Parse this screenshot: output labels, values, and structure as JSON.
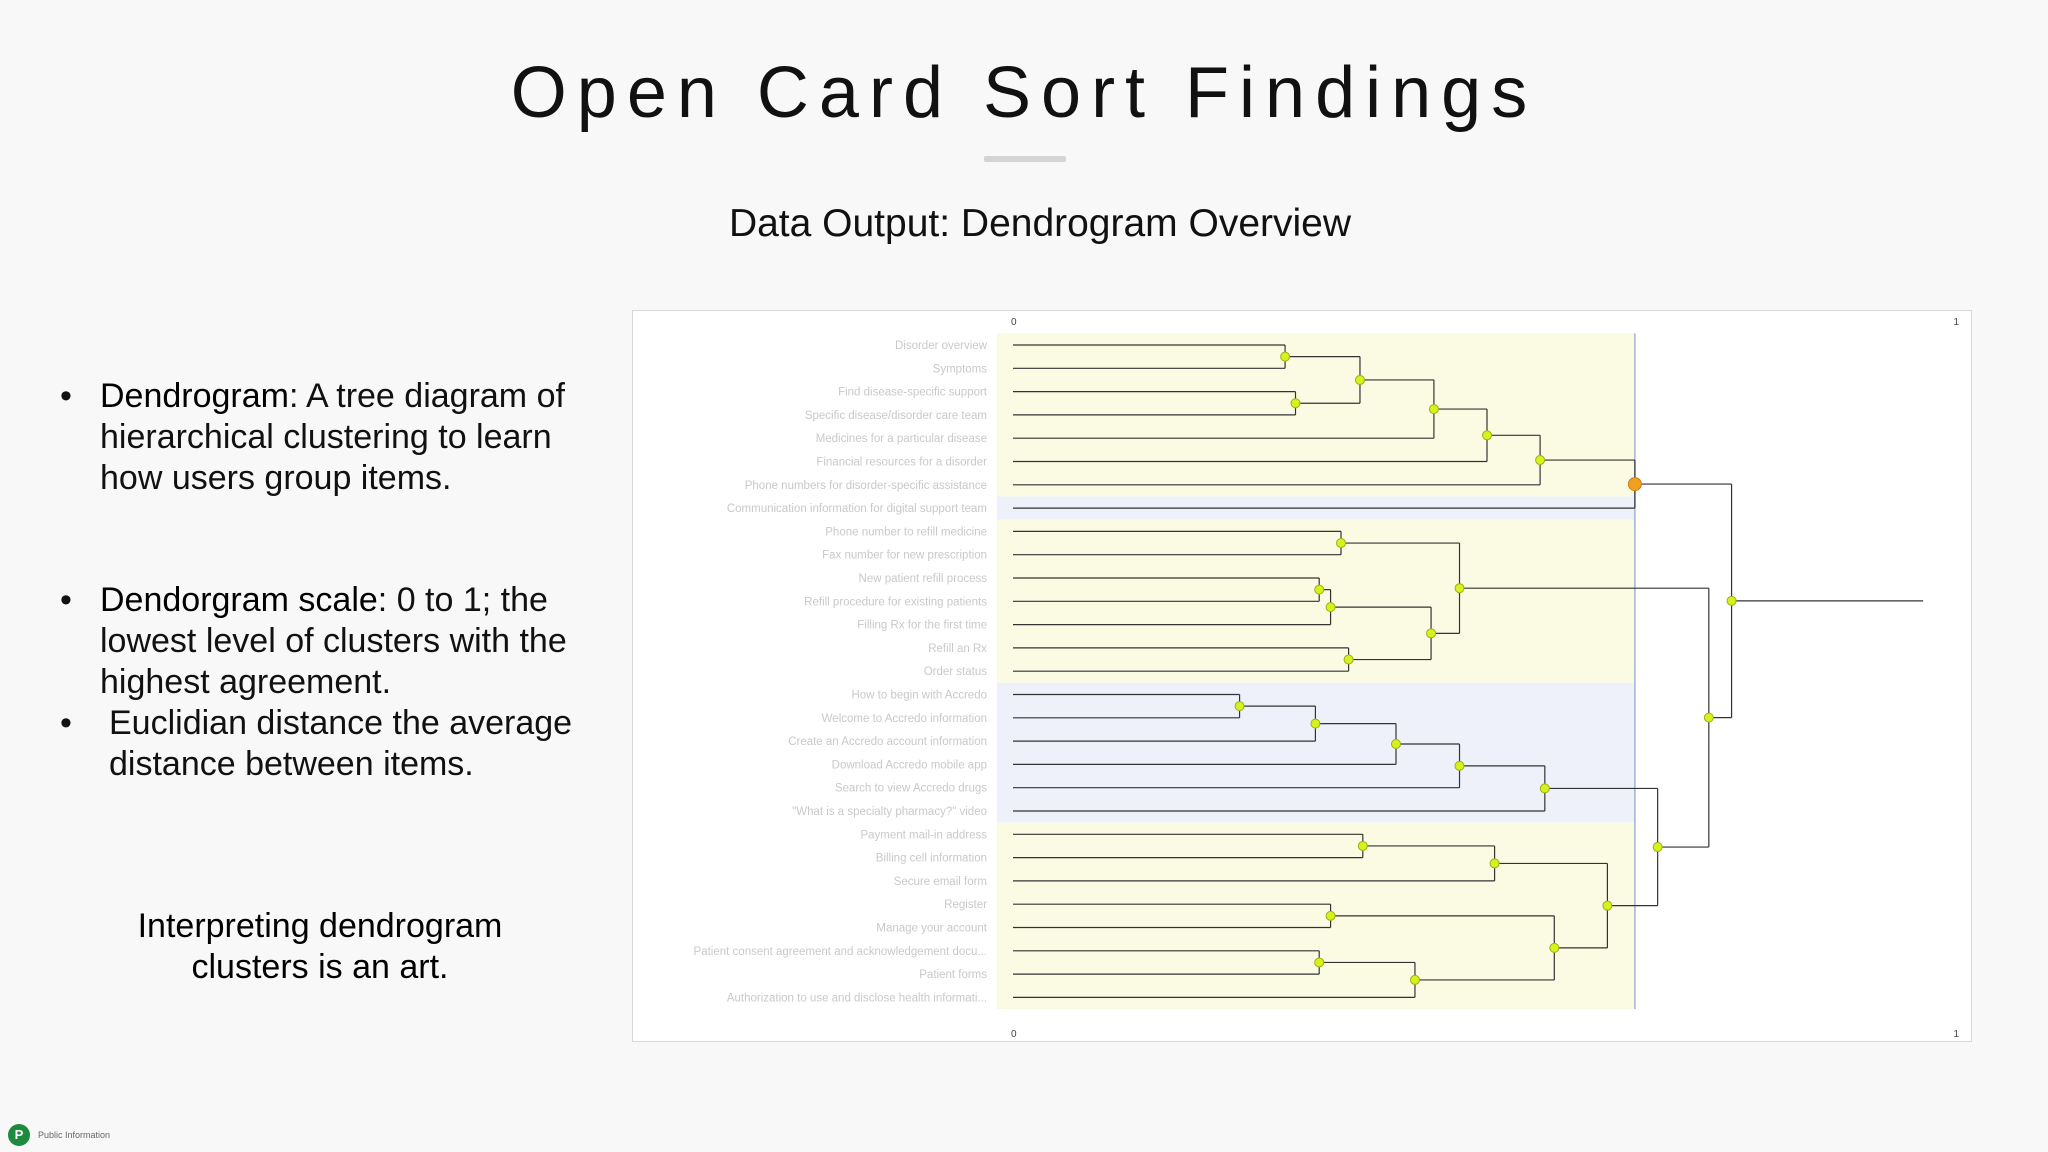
{
  "slide": {
    "title": "Open Card Sort Findings",
    "subtitle": "Data Output: Dendrogram Overview",
    "bullets": [
      {
        "term": "Dendrogram",
        "text": ": A tree diagram of hierarchical clustering to learn how users group items."
      },
      {
        "term": "Dendorgram scale",
        "text": ": 0 to 1; the lowest level of clusters with the highest agreement."
      },
      {
        "term": "",
        "text": "Euclidian distance the average distance between items."
      }
    ],
    "note": "Interpreting dendrogram clusters is an art.",
    "footer_label": "Public Information",
    "footer_logo": "P"
  },
  "dendrogram": {
    "scale_min": "0",
    "scale_max": "1",
    "colors": {
      "yellow_band": "#fbfbe4",
      "blue_band": "#eef1fa",
      "node": "#d6f11d",
      "root_node": "#f0a020",
      "line": "#333333",
      "cut_line": "#9db3d8"
    },
    "items": [
      "Disorder overview",
      "Symptoms",
      "Find disease-specific support",
      "Specific disease/disorder care team",
      "Medicines for a particular disease",
      "Financial resources for a disorder",
      "Phone numbers for disorder-specific assistance",
      "Communication information for digital support team",
      "Phone number to refill medicine",
      "Fax number for new prescription",
      "New patient refill process",
      "Refill procedure for existing patients",
      "Filling Rx for the first time",
      "Refill an Rx",
      "Order status",
      "How to begin with Accredo",
      "Welcome to Accredo information",
      "Create an Accredo account information",
      "Download Accredo mobile app",
      "Search to view Accredo drugs",
      "\"What is a specialty pharmacy?\" video",
      "Payment mail-in address",
      "Billing cell information",
      "Secure email form",
      "Register",
      "Manage your account",
      "Patient consent agreement and acknowledgement docu...",
      "Patient forms",
      "Authorization to use and disclose health informati..."
    ],
    "bands": [
      {
        "from": 0,
        "to": 6,
        "color": "yellow"
      },
      {
        "from": 7,
        "to": 7,
        "color": "blue"
      },
      {
        "from": 8,
        "to": 14,
        "color": "yellow"
      },
      {
        "from": 15,
        "to": 20,
        "color": "blue"
      },
      {
        "from": 21,
        "to": 28,
        "color": "yellow"
      }
    ],
    "cut_level": 0.656,
    "merges": [
      {
        "a": 0,
        "b": 1,
        "d": 0.287
      },
      {
        "a": 2,
        "b": 3,
        "d": 0.298
      },
      {
        "a": 29,
        "b": 30,
        "d": 0.366
      },
      {
        "a": 31,
        "b": 4,
        "d": 0.444
      },
      {
        "a": 32,
        "b": 5,
        "d": 0.5
      },
      {
        "a": 33,
        "b": 6,
        "d": 0.556
      },
      {
        "a": 8,
        "b": 9,
        "d": 0.346
      },
      {
        "a": 10,
        "b": 11,
        "d": 0.323
      },
      {
        "a": 36,
        "b": 12,
        "d": 0.335
      },
      {
        "a": 13,
        "b": 14,
        "d": 0.354
      },
      {
        "a": 37,
        "b": 38,
        "d": 0.441
      },
      {
        "a": 35,
        "b": 39,
        "d": 0.471
      },
      {
        "a": 15,
        "b": 16,
        "d": 0.239
      },
      {
        "a": 41,
        "b": 17,
        "d": 0.319
      },
      {
        "a": 42,
        "b": 18,
        "d": 0.404
      },
      {
        "a": 43,
        "b": 19,
        "d": 0.471
      },
      {
        "a": 44,
        "b": 20,
        "d": 0.561
      },
      {
        "a": 21,
        "b": 22,
        "d": 0.369
      },
      {
        "a": 46,
        "b": 23,
        "d": 0.508
      },
      {
        "a": 24,
        "b": 25,
        "d": 0.335
      },
      {
        "a": 26,
        "b": 27,
        "d": 0.323
      },
      {
        "a": 49,
        "b": 28,
        "d": 0.424
      },
      {
        "a": 48,
        "b": 50,
        "d": 0.571
      },
      {
        "a": 47,
        "b": 51,
        "d": 0.627
      },
      {
        "a": 45,
        "b": 52,
        "d": 0.68
      },
      {
        "a": 40,
        "b": 53,
        "d": 0.734
      },
      {
        "a": 34,
        "b": 7,
        "d": 0.656
      },
      {
        "a": 55,
        "b": 54,
        "d": 0.758
      },
      {
        "a": 56,
        "b": null,
        "d": 0.96
      }
    ]
  }
}
